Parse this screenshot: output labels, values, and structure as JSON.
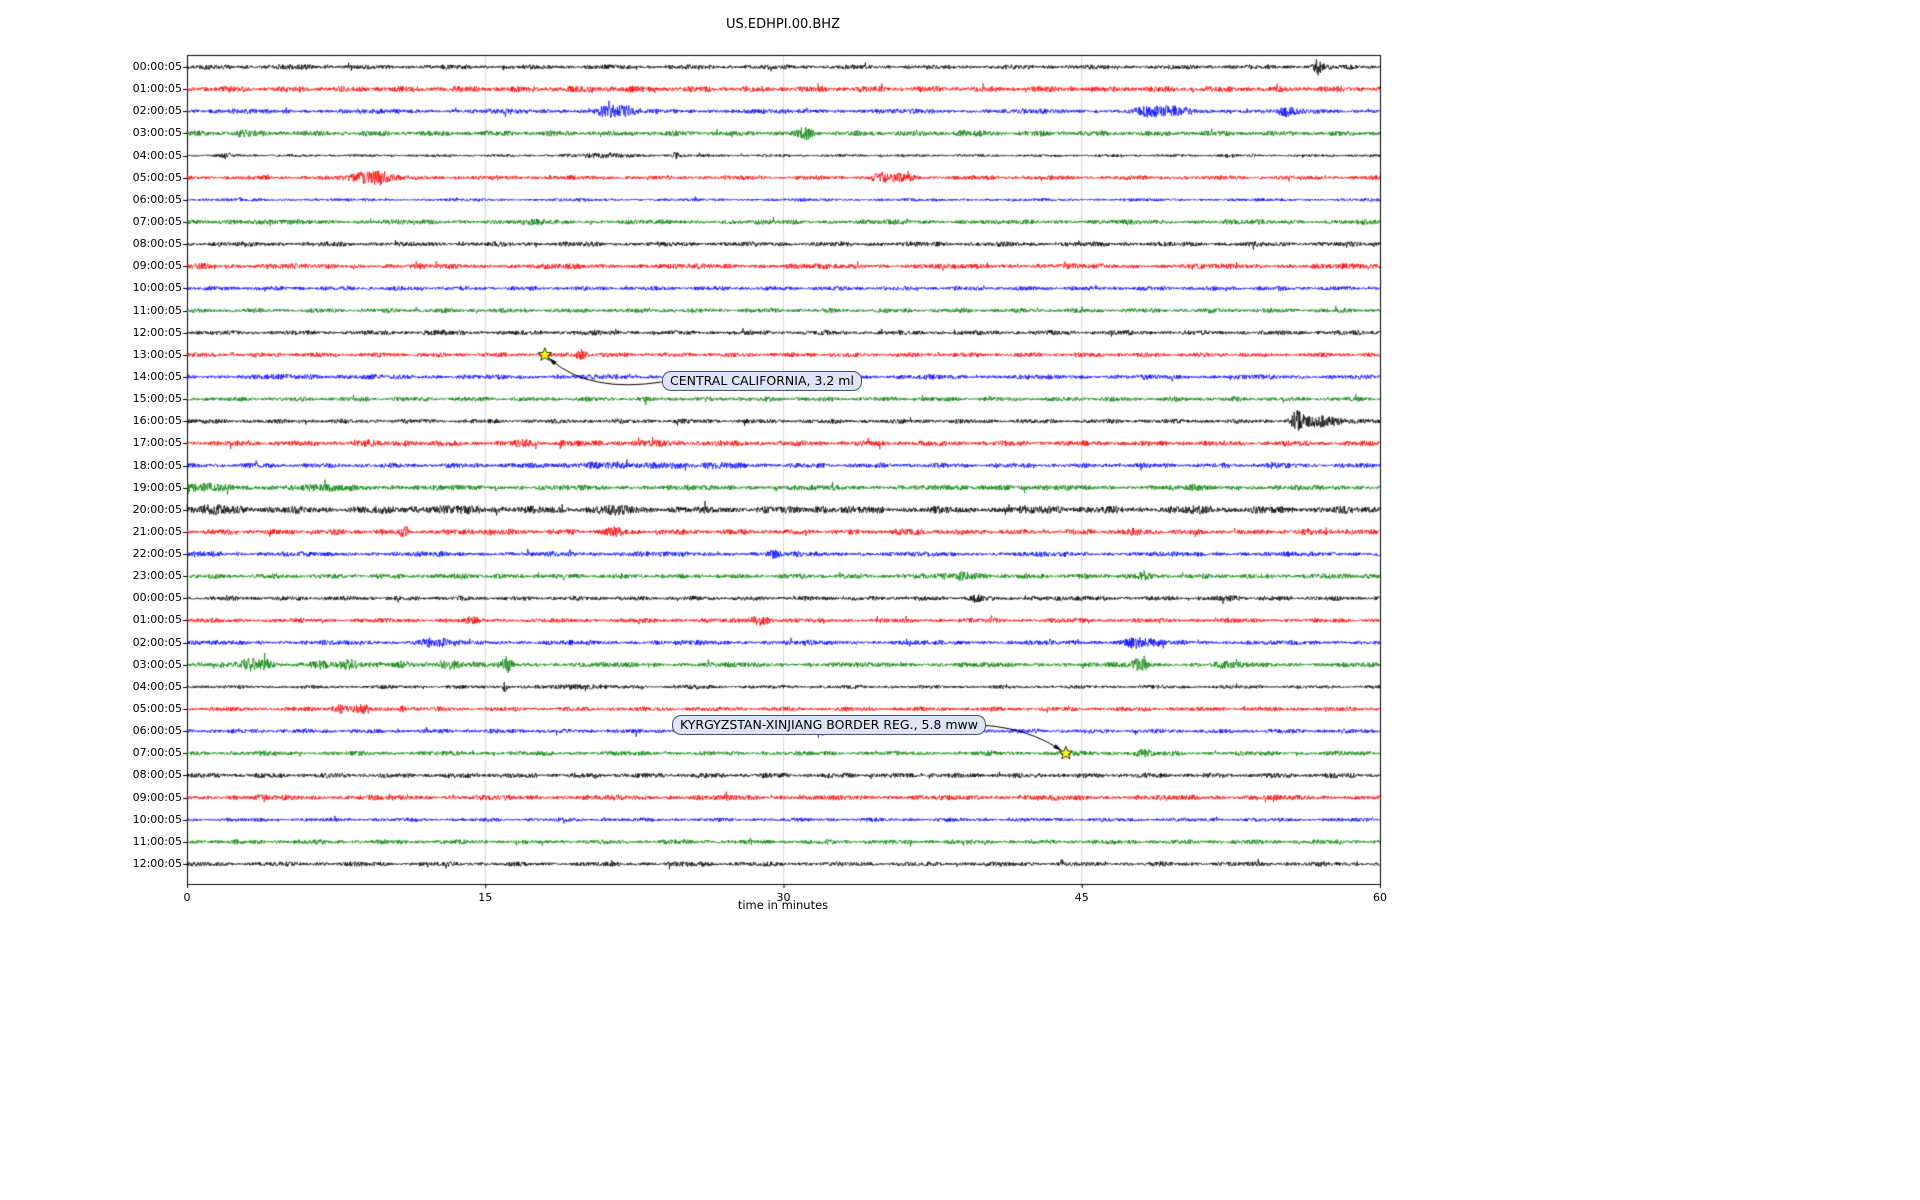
{
  "title": "US.EDHPI.00.BHZ",
  "xlabel": "time in minutes",
  "chart_data": {
    "type": "line",
    "subtype": "seismogram-dayplot",
    "station": "US.EDHPI.00.BHZ",
    "xlabel": "time in minutes",
    "x_range": [
      0,
      60
    ],
    "x_ticks": [
      0,
      15,
      30,
      45,
      60
    ],
    "grid": "vertical",
    "color_cycle": {
      "black": "#000000",
      "red": "#ff0000",
      "blue": "#0000ff",
      "green": "#008000"
    },
    "rows": [
      {
        "label": "00:00:05",
        "color": "black",
        "base": 1.8,
        "bursts": [
          [
            56.9,
            0.25,
            7.0
          ],
          [
            5.5,
            1.5,
            0.6
          ]
        ]
      },
      {
        "label": "01:00:05",
        "color": "red",
        "base": 2.3,
        "bursts": [
          [
            21.0,
            2.0,
            0.5
          ]
        ]
      },
      {
        "label": "02:00:05",
        "color": "blue",
        "base": 1.9,
        "bursts": [
          [
            21.0,
            0.5,
            3.5
          ],
          [
            21.8,
            0.7,
            4.5
          ],
          [
            48.3,
            0.6,
            4.0
          ],
          [
            49.6,
            0.8,
            3.5
          ],
          [
            55.3,
            0.4,
            3.5
          ]
        ]
      },
      {
        "label": "03:00:05",
        "color": "green",
        "base": 2.1,
        "bursts": [
          [
            2.8,
            0.5,
            2.0
          ],
          [
            31.1,
            0.35,
            5.0
          ],
          [
            39.0,
            1.0,
            0.8
          ]
        ]
      },
      {
        "label": "04:00:05",
        "color": "black",
        "base": 1.1,
        "bursts": [
          [
            2.0,
            0.2,
            3.0
          ],
          [
            21.0,
            1.2,
            2.2
          ],
          [
            24.6,
            0.2,
            3.5
          ],
          [
            52.3,
            0.3,
            1.5
          ]
        ]
      },
      {
        "label": "05:00:05",
        "color": "red",
        "base": 1.7,
        "bursts": [
          [
            8.6,
            0.5,
            3.0
          ],
          [
            9.6,
            0.7,
            6.5
          ],
          [
            34.9,
            0.5,
            4.0
          ],
          [
            36.0,
            0.6,
            2.5
          ]
        ]
      },
      {
        "label": "06:00:05",
        "color": "blue",
        "base": 1.2,
        "bursts": []
      },
      {
        "label": "07:00:05",
        "color": "green",
        "base": 1.9,
        "bursts": [
          [
            2.5,
            1.5,
            0.8
          ],
          [
            17.8,
            0.8,
            1.0
          ]
        ]
      },
      {
        "label": "08:00:05",
        "color": "black",
        "base": 1.9,
        "bursts": []
      },
      {
        "label": "09:00:05",
        "color": "red",
        "base": 2.1,
        "bursts": [
          [
            0.8,
            0.6,
            1.0
          ]
        ]
      },
      {
        "label": "10:00:05",
        "color": "blue",
        "base": 1.7,
        "bursts": []
      },
      {
        "label": "11:00:05",
        "color": "green",
        "base": 1.8,
        "bursts": []
      },
      {
        "label": "12:00:05",
        "color": "black",
        "base": 1.8,
        "bursts": [
          [
            12.4,
            0.4,
            1.2
          ],
          [
            20.0,
            0.8,
            0.8
          ]
        ]
      },
      {
        "label": "13:00:05",
        "color": "red",
        "base": 1.8,
        "bursts": [
          [
            19.8,
            0.3,
            3.8
          ]
        ]
      },
      {
        "label": "14:00:05",
        "color": "blue",
        "base": 1.9,
        "bursts": [
          [
            6.0,
            2.0,
            0.7
          ]
        ]
      },
      {
        "label": "15:00:05",
        "color": "green",
        "base": 1.8,
        "bursts": []
      },
      {
        "label": "16:00:05",
        "color": "black",
        "base": 1.8,
        "bursts": [
          [
            55.8,
            0.3,
            7.5
          ],
          [
            56.8,
            0.9,
            4.5
          ],
          [
            58.0,
            1.0,
            1.5
          ]
        ]
      },
      {
        "label": "17:00:05",
        "color": "red",
        "base": 2.1,
        "bursts": [
          [
            9.0,
            0.3,
            2.0
          ],
          [
            11.0,
            0.3,
            2.0
          ],
          [
            17.0,
            0.4,
            2.5
          ],
          [
            19.0,
            0.3,
            2.0
          ],
          [
            24.0,
            3.0,
            0.7
          ]
        ]
      },
      {
        "label": "18:00:05",
        "color": "blue",
        "base": 1.9,
        "bursts": [
          [
            22.0,
            4.0,
            1.3
          ],
          [
            26.5,
            0.5,
            2.2
          ],
          [
            54.5,
            0.3,
            2.0
          ]
        ]
      },
      {
        "label": "19:00:05",
        "color": "green",
        "base": 2.1,
        "bursts": [
          [
            0.8,
            1.2,
            2.5
          ],
          [
            7.0,
            3.0,
            1.0
          ],
          [
            41.0,
            0.8,
            1.2
          ],
          [
            50.8,
            0.4,
            1.5
          ]
        ]
      },
      {
        "label": "20:00:05",
        "color": "black",
        "base": 2.8,
        "bursts": [
          [
            1.5,
            1.5,
            2.0
          ],
          [
            13.0,
            3.0,
            1.2
          ],
          [
            21.5,
            1.0,
            2.0
          ],
          [
            32.0,
            0.6,
            1.5
          ],
          [
            43.5,
            1.2,
            1.2
          ],
          [
            51.0,
            0.8,
            1.0
          ]
        ]
      },
      {
        "label": "21:00:05",
        "color": "red",
        "base": 2.1,
        "bursts": [
          [
            10.9,
            0.15,
            4.5
          ],
          [
            14.8,
            1.0,
            1.0
          ],
          [
            21.4,
            0.5,
            3.0
          ],
          [
            36.5,
            1.0,
            1.0
          ],
          [
            47.5,
            1.0,
            1.0
          ],
          [
            57.0,
            0.8,
            1.0
          ]
        ]
      },
      {
        "label": "22:00:05",
        "color": "blue",
        "base": 1.9,
        "bursts": [
          [
            1.0,
            1.0,
            1.0
          ],
          [
            29.5,
            0.3,
            2.2
          ],
          [
            22.5,
            1.0,
            0.8
          ]
        ]
      },
      {
        "label": "23:00:05",
        "color": "green",
        "base": 1.9,
        "bursts": [
          [
            14.0,
            0.3,
            2.2
          ],
          [
            38.8,
            1.2,
            2.2
          ],
          [
            48.0,
            0.5,
            1.8
          ],
          [
            58.0,
            0.6,
            1.2
          ]
        ]
      },
      {
        "label": "00:00:05",
        "color": "black",
        "base": 1.8,
        "bursts": [
          [
            39.7,
            0.25,
            3.2
          ],
          [
            44.5,
            0.8,
            1.0
          ],
          [
            52.6,
            0.3,
            2.5
          ]
        ]
      },
      {
        "label": "01:00:05",
        "color": "red",
        "base": 1.8,
        "bursts": [
          [
            14.3,
            0.3,
            1.8
          ],
          [
            28.8,
            0.5,
            4.0
          ]
        ]
      },
      {
        "label": "02:00:05",
        "color": "blue",
        "base": 1.9,
        "bursts": [
          [
            12.1,
            0.4,
            3.5
          ],
          [
            12.9,
            0.3,
            2.5
          ],
          [
            47.6,
            0.5,
            4.5
          ],
          [
            48.6,
            0.4,
            3.0
          ]
        ]
      },
      {
        "label": "03:00:05",
        "color": "green",
        "base": 2.0,
        "bursts": [
          [
            3.2,
            0.6,
            4.0
          ],
          [
            4.0,
            0.4,
            3.0
          ],
          [
            6.6,
            0.6,
            3.0
          ],
          [
            8.1,
            0.5,
            3.5
          ],
          [
            11.0,
            0.5,
            2.5
          ],
          [
            13.2,
            0.6,
            3.0
          ],
          [
            16.1,
            0.25,
            6.5
          ],
          [
            47.9,
            0.4,
            5.5
          ],
          [
            52.3,
            0.5,
            2.0
          ]
        ]
      },
      {
        "label": "04:00:05",
        "color": "black",
        "base": 1.4,
        "bursts": [
          [
            16.0,
            0.15,
            4.5
          ],
          [
            19.8,
            1.2,
            1.8
          ],
          [
            25.5,
            0.5,
            1.0
          ]
        ]
      },
      {
        "label": "05:00:05",
        "color": "red",
        "base": 1.7,
        "bursts": [
          [
            7.8,
            0.6,
            3.5
          ],
          [
            8.8,
            0.4,
            2.5
          ],
          [
            10.8,
            0.15,
            3.5
          ]
        ]
      },
      {
        "label": "06:00:05",
        "color": "blue",
        "base": 1.8,
        "bursts": [
          [
            31.8,
            0.25,
            5.0
          ]
        ]
      },
      {
        "label": "07:00:05",
        "color": "green",
        "base": 1.8,
        "bursts": [
          [
            48.0,
            0.5,
            2.5
          ]
        ]
      },
      {
        "label": "08:00:05",
        "color": "black",
        "base": 2.0,
        "bursts": []
      },
      {
        "label": "09:00:05",
        "color": "red",
        "base": 2.1,
        "bursts": []
      },
      {
        "label": "10:00:05",
        "color": "blue",
        "base": 1.5,
        "bursts": []
      },
      {
        "label": "11:00:05",
        "color": "green",
        "base": 1.8,
        "bursts": []
      },
      {
        "label": "12:00:05",
        "color": "black",
        "base": 1.8,
        "bursts": [
          [
            25.5,
            0.8,
            0.8
          ]
        ]
      }
    ],
    "annotations": [
      {
        "text": "CENTRAL CALIFORNIA, 3.2 ml",
        "row": 13,
        "t_min": 18.0,
        "box_x": 662,
        "box_y": 371,
        "arrow_from": [
          662,
          382
        ],
        "arrow_ctrl": [
          590,
          393
        ]
      },
      {
        "text": "KYRGYZSTAN-XINJIANG BORDER REG., 5.8 mww",
        "row": 31,
        "t_min": 44.2,
        "box_x": 672,
        "box_y": 715,
        "arrow_from": [
          948,
          725
        ],
        "arrow_ctrl": [
          1016,
          721
        ]
      }
    ]
  }
}
